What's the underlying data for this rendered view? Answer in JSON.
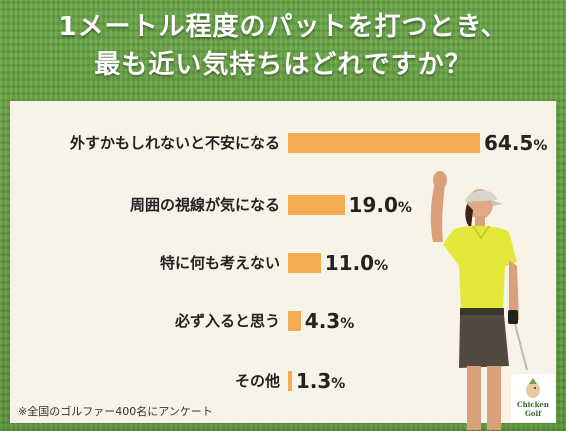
{
  "title": {
    "line1": "1メートル程度のパットを打つとき、",
    "line2": "最も近い気持ちはどれですか？"
  },
  "footnote": "※全国のゴルファー400名にアンケート",
  "logo": {
    "name": "Chicken Golf",
    "line1": "Chicken",
    "line2": "Golf",
    "icon": "chicken-logo-icon"
  },
  "colors": {
    "bar": "#f3ac4f",
    "panel": "#f8f3e8",
    "background": "#5f9a3c"
  },
  "chart_data": {
    "type": "bar",
    "orientation": "horizontal",
    "categories": [
      "外すかもしれないと不安になる",
      "周囲の視線が気になる",
      "特に何も考えない",
      "必ず入ると思う",
      "その他"
    ],
    "values": [
      64.5,
      19.0,
      11.0,
      4.3,
      1.3
    ],
    "value_labels": [
      "64.5",
      "19.0",
      "11.0",
      "4.3",
      "1.3"
    ],
    "unit": "%",
    "xlim": [
      0,
      64.5
    ],
    "grid": false,
    "legend": "none"
  }
}
